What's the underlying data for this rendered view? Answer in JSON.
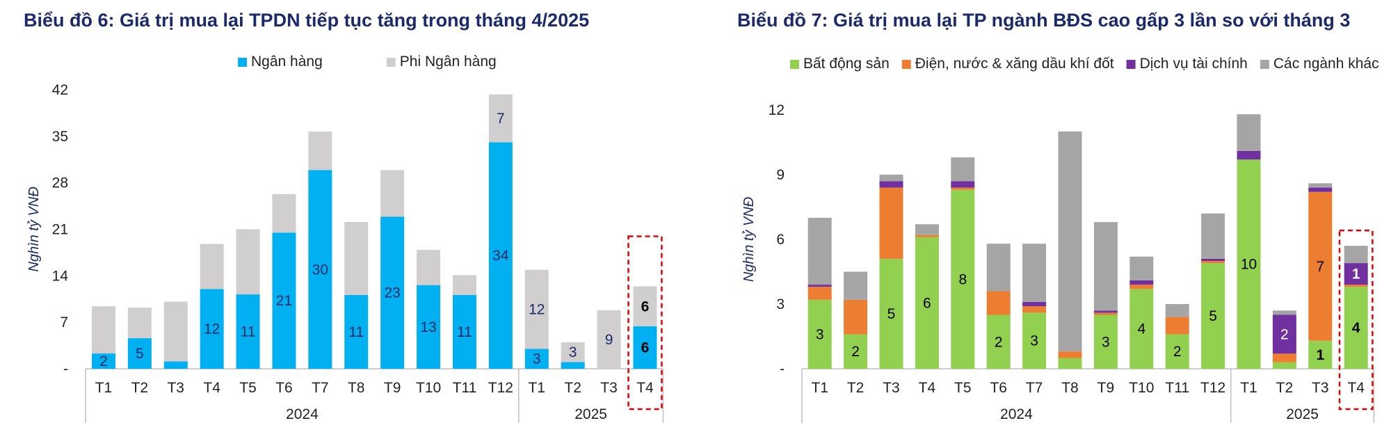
{
  "chart_data": [
    {
      "type": "bar",
      "stacked": true,
      "title": "Biểu đồ 6: Giá trị mua lại TPDN tiếp tục tăng trong tháng 4/2025",
      "ylabel": "Nghìn tỷ VNĐ",
      "xlabel": "",
      "ylim": [
        0,
        42
      ],
      "yticks": [
        "-",
        "7",
        "14",
        "21",
        "28",
        "35",
        "42"
      ],
      "ytick_values": [
        0,
        7,
        14,
        21,
        28,
        35,
        42
      ],
      "legend_position": "top",
      "grid": false,
      "categories": [
        "T1",
        "T2",
        "T3",
        "T4",
        "T5",
        "T6",
        "T7",
        "T8",
        "T9",
        "T10",
        "T11",
        "T12",
        "T1",
        "T2",
        "T3",
        "T4"
      ],
      "groups": [
        {
          "label": "2024",
          "count": 12
        },
        {
          "label": "2025",
          "count": 4
        }
      ],
      "highlight_index": 15,
      "series": [
        {
          "name": "Ngân hàng",
          "color": "#00b0f0",
          "values": [
            2.3,
            4.6,
            1.1,
            12,
            11.2,
            20.5,
            29.9,
            11.1,
            22.9,
            12.6,
            11.1,
            34.1,
            3.0,
            1.0,
            0,
            6.4
          ],
          "labels": [
            "2",
            "5",
            "",
            "12",
            "11",
            "21",
            "30",
            "11",
            "23",
            "13",
            "11",
            "34",
            "3",
            "",
            "",
            "6"
          ]
        },
        {
          "name": "Phi Ngân hàng",
          "color": "#d0cece",
          "values": [
            7.1,
            4.6,
            9.0,
            6.8,
            9.8,
            5.8,
            5.8,
            11.0,
            7.0,
            5.3,
            3.0,
            7.2,
            11.9,
            3.0,
            8.8,
            6.0
          ],
          "labels": [
            "",
            "",
            "",
            "",
            "",
            "",
            "",
            "",
            "",
            "",
            "",
            "7",
            "12",
            "3",
            "9",
            "6"
          ]
        }
      ]
    },
    {
      "type": "bar",
      "stacked": true,
      "title": "Biểu đồ 7: Giá trị mua lại TP ngành BĐS cao gấp 3 lần so với tháng 3",
      "ylabel": "Nghìn tỷ VNĐ",
      "xlabel": "",
      "ylim": [
        0,
        12
      ],
      "yticks": [
        "-",
        "3",
        "6",
        "9",
        "12"
      ],
      "ytick_values": [
        0,
        3,
        6,
        9,
        12
      ],
      "legend_position": "top",
      "grid": false,
      "categories": [
        "T1",
        "T2",
        "T3",
        "T4",
        "T5",
        "T6",
        "T7",
        "T8",
        "T9",
        "T10",
        "T11",
        "T12",
        "T1",
        "T2",
        "T3",
        "T4"
      ],
      "groups": [
        {
          "label": "2024",
          "count": 12
        },
        {
          "label": "2025",
          "count": 4
        }
      ],
      "highlight_index": 15,
      "series": [
        {
          "name": "Bất động sản",
          "color": "#92d050",
          "values": [
            3.2,
            1.6,
            5.1,
            6.1,
            8.3,
            2.5,
            2.6,
            0.5,
            2.5,
            3.7,
            1.6,
            4.9,
            9.7,
            0.3,
            1.3,
            3.8
          ],
          "labels": [
            "3",
            "2",
            "5",
            "6",
            "8",
            "2",
            "3",
            "",
            "3",
            "4",
            "2",
            "5",
            "10",
            "",
            "1",
            "4"
          ]
        },
        {
          "name": "Điện, nước & xăng dầu khí đốt",
          "color": "#ed7d31",
          "values": [
            0.6,
            1.6,
            3.3,
            0.1,
            0.1,
            1.1,
            0.3,
            0.3,
            0.1,
            0.2,
            0.8,
            0.1,
            0,
            0.4,
            6.9,
            0.1
          ],
          "labels": [
            "",
            "",
            "",
            "",
            "",
            "",
            "",
            "",
            "",
            "",
            "",
            "",
            "",
            "",
            "7",
            ""
          ]
        },
        {
          "name": "Dịch vụ tài chính",
          "color": "#7030a0",
          "values": [
            0.1,
            0,
            0.3,
            0,
            0.3,
            0,
            0.2,
            0,
            0.1,
            0.2,
            0,
            0.1,
            0.4,
            1.8,
            0.2,
            1.0
          ],
          "labels": [
            "",
            "",
            "",
            "",
            "",
            "",
            "",
            "",
            "",
            "",
            "",
            "",
            "",
            "2",
            "",
            "1"
          ]
        },
        {
          "name": "Các ngành khác",
          "color": "#a5a5a5",
          "values": [
            3.1,
            1.3,
            0.3,
            0.5,
            1.1,
            2.2,
            2.7,
            10.2,
            4.1,
            1.1,
            0.6,
            2.1,
            1.7,
            0.2,
            0.2,
            0.8
          ],
          "labels": [
            "",
            "",
            "",
            "",
            "",
            "",
            "",
            "",
            "",
            "",
            "",
            "",
            "",
            "",
            "",
            ""
          ]
        }
      ]
    }
  ]
}
